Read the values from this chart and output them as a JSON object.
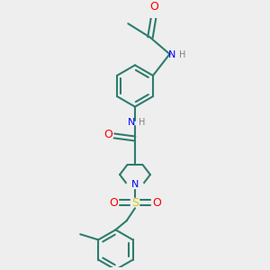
{
  "bg_color": "#eeeeee",
  "bond_color": "#2d7d6e",
  "N_color": "#0000ff",
  "O_color": "#ff0000",
  "S_color": "#cccc00",
  "H_color": "#808080",
  "line_width": 1.5,
  "figsize": [
    3.0,
    3.0
  ],
  "dpi": 100,
  "xlim": [
    -2.5,
    2.5
  ],
  "ylim": [
    -4.5,
    4.5
  ]
}
